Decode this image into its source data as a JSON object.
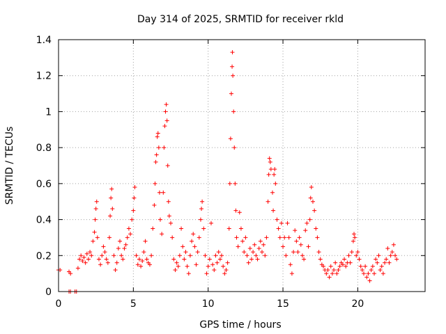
{
  "chart_data": {
    "type": "scatter",
    "title": "Day 314 of 2025, SRMTID for receiver rkld",
    "xlabel": "GPS time / hours",
    "ylabel": "SRMTID / TECUs",
    "xlim": [
      0,
      24.5
    ],
    "ylim": [
      0,
      1.4
    ],
    "xticks": [
      0,
      5,
      10,
      15,
      20
    ],
    "xtick_labels": [
      "0",
      "5",
      "10",
      "15",
      "20"
    ],
    "yticks": [
      0,
      0.2,
      0.4,
      0.6,
      0.8,
      1.0,
      1.2,
      1.4
    ],
    "ytick_labels": [
      "0",
      "0.2",
      "0.4",
      "0.6",
      "0.8",
      "1",
      "1.2",
      "1.4"
    ],
    "grid": true,
    "marker": "+",
    "color": "#ff0000",
    "series": [
      {
        "name": "SRMTID",
        "points": [
          [
            0.0,
            0.12
          ],
          [
            0.1,
            0.12
          ],
          [
            0.7,
            0.11
          ],
          [
            0.8,
            0.1
          ],
          [
            0.7,
            0.0
          ],
          [
            0.8,
            0.0
          ],
          [
            1.1,
            0.0
          ],
          [
            1.2,
            0.0
          ],
          [
            1.3,
            0.13
          ],
          [
            1.4,
            0.18
          ],
          [
            1.5,
            0.2
          ],
          [
            1.6,
            0.17
          ],
          [
            1.7,
            0.19
          ],
          [
            1.8,
            0.16
          ],
          [
            1.9,
            0.21
          ],
          [
            2.0,
            0.18
          ],
          [
            2.1,
            0.22
          ],
          [
            2.2,
            0.2
          ],
          [
            2.3,
            0.28
          ],
          [
            2.4,
            0.33
          ],
          [
            2.45,
            0.4
          ],
          [
            2.5,
            0.46
          ],
          [
            2.55,
            0.5
          ],
          [
            2.6,
            0.3
          ],
          [
            2.7,
            0.18
          ],
          [
            2.8,
            0.15
          ],
          [
            2.9,
            0.2
          ],
          [
            3.0,
            0.25
          ],
          [
            3.1,
            0.22
          ],
          [
            3.2,
            0.18
          ],
          [
            3.3,
            0.16
          ],
          [
            3.4,
            0.3
          ],
          [
            3.45,
            0.42
          ],
          [
            3.5,
            0.52
          ],
          [
            3.55,
            0.57
          ],
          [
            3.6,
            0.46
          ],
          [
            3.7,
            0.2
          ],
          [
            3.8,
            0.12
          ],
          [
            3.9,
            0.16
          ],
          [
            4.0,
            0.24
          ],
          [
            4.1,
            0.28
          ],
          [
            4.2,
            0.2
          ],
          [
            4.3,
            0.18
          ],
          [
            4.4,
            0.24
          ],
          [
            4.5,
            0.26
          ],
          [
            4.6,
            0.3
          ],
          [
            4.7,
            0.35
          ],
          [
            4.8,
            0.32
          ],
          [
            4.9,
            0.4
          ],
          [
            5.0,
            0.45
          ],
          [
            5.05,
            0.52
          ],
          [
            5.1,
            0.58
          ],
          [
            5.2,
            0.2
          ],
          [
            5.3,
            0.15
          ],
          [
            5.4,
            0.18
          ],
          [
            5.5,
            0.14
          ],
          [
            5.6,
            0.17
          ],
          [
            5.7,
            0.22
          ],
          [
            5.8,
            0.28
          ],
          [
            5.9,
            0.18
          ],
          [
            6.0,
            0.16
          ],
          [
            6.1,
            0.15
          ],
          [
            6.2,
            0.2
          ],
          [
            6.3,
            0.35
          ],
          [
            6.4,
            0.48
          ],
          [
            6.45,
            0.6
          ],
          [
            6.5,
            0.72
          ],
          [
            6.55,
            0.76
          ],
          [
            6.6,
            0.86
          ],
          [
            6.65,
            0.88
          ],
          [
            6.7,
            0.8
          ],
          [
            6.75,
            0.55
          ],
          [
            6.8,
            0.4
          ],
          [
            6.9,
            0.32
          ],
          [
            7.0,
            0.55
          ],
          [
            7.05,
            0.8
          ],
          [
            7.1,
            0.92
          ],
          [
            7.15,
            1.0
          ],
          [
            7.2,
            1.04
          ],
          [
            7.25,
            0.95
          ],
          [
            7.3,
            0.7
          ],
          [
            7.35,
            0.5
          ],
          [
            7.4,
            0.42
          ],
          [
            7.5,
            0.38
          ],
          [
            7.6,
            0.3
          ],
          [
            7.7,
            0.18
          ],
          [
            7.8,
            0.12
          ],
          [
            7.9,
            0.16
          ],
          [
            8.0,
            0.14
          ],
          [
            8.1,
            0.2
          ],
          [
            8.2,
            0.35
          ],
          [
            8.3,
            0.25
          ],
          [
            8.4,
            0.18
          ],
          [
            8.5,
            0.22
          ],
          [
            8.6,
            0.14
          ],
          [
            8.7,
            0.1
          ],
          [
            8.8,
            0.2
          ],
          [
            8.9,
            0.28
          ],
          [
            9.0,
            0.32
          ],
          [
            9.1,
            0.25
          ],
          [
            9.2,
            0.15
          ],
          [
            9.3,
            0.22
          ],
          [
            9.4,
            0.3
          ],
          [
            9.5,
            0.4
          ],
          [
            9.55,
            0.46
          ],
          [
            9.6,
            0.5
          ],
          [
            9.7,
            0.35
          ],
          [
            9.8,
            0.2
          ],
          [
            9.9,
            0.1
          ],
          [
            10.0,
            0.14
          ],
          [
            10.1,
            0.18
          ],
          [
            10.2,
            0.38
          ],
          [
            10.3,
            0.15
          ],
          [
            10.4,
            0.12
          ],
          [
            10.5,
            0.2
          ],
          [
            10.6,
            0.16
          ],
          [
            10.7,
            0.22
          ],
          [
            10.8,
            0.18
          ],
          [
            10.9,
            0.2
          ],
          [
            11.0,
            0.14
          ],
          [
            11.1,
            0.1
          ],
          [
            11.2,
            0.12
          ],
          [
            11.3,
            0.16
          ],
          [
            11.4,
            0.35
          ],
          [
            11.45,
            0.6
          ],
          [
            11.5,
            0.85
          ],
          [
            11.55,
            1.1
          ],
          [
            11.6,
            1.25
          ],
          [
            11.62,
            1.33
          ],
          [
            11.65,
            1.2
          ],
          [
            11.7,
            1.0
          ],
          [
            11.75,
            0.8
          ],
          [
            11.8,
            0.6
          ],
          [
            11.85,
            0.45
          ],
          [
            11.9,
            0.3
          ],
          [
            12.0,
            0.25
          ],
          [
            12.1,
            0.44
          ],
          [
            12.2,
            0.35
          ],
          [
            12.3,
            0.28
          ],
          [
            12.4,
            0.22
          ],
          [
            12.5,
            0.3
          ],
          [
            12.6,
            0.2
          ],
          [
            12.7,
            0.16
          ],
          [
            12.8,
            0.24
          ],
          [
            12.9,
            0.18
          ],
          [
            13.0,
            0.22
          ],
          [
            13.1,
            0.26
          ],
          [
            13.2,
            0.2
          ],
          [
            13.3,
            0.18
          ],
          [
            13.4,
            0.24
          ],
          [
            13.5,
            0.28
          ],
          [
            13.6,
            0.22
          ],
          [
            13.7,
            0.26
          ],
          [
            13.8,
            0.2
          ],
          [
            13.9,
            0.3
          ],
          [
            14.0,
            0.5
          ],
          [
            14.05,
            0.65
          ],
          [
            14.1,
            0.74
          ],
          [
            14.15,
            0.72
          ],
          [
            14.2,
            0.68
          ],
          [
            14.3,
            0.55
          ],
          [
            14.35,
            0.45
          ],
          [
            14.4,
            0.65
          ],
          [
            14.45,
            0.68
          ],
          [
            14.5,
            0.6
          ],
          [
            14.6,
            0.4
          ],
          [
            14.7,
            0.35
          ],
          [
            14.8,
            0.3
          ],
          [
            14.9,
            0.38
          ],
          [
            15.0,
            0.25
          ],
          [
            15.1,
            0.3
          ],
          [
            15.2,
            0.2
          ],
          [
            15.3,
            0.38
          ],
          [
            15.4,
            0.3
          ],
          [
            15.5,
            0.15
          ],
          [
            15.6,
            0.1
          ],
          [
            15.7,
            0.22
          ],
          [
            15.8,
            0.34
          ],
          [
            15.9,
            0.28
          ],
          [
            16.0,
            0.22
          ],
          [
            16.1,
            0.3
          ],
          [
            16.2,
            0.26
          ],
          [
            16.3,
            0.2
          ],
          [
            16.4,
            0.18
          ],
          [
            16.5,
            0.34
          ],
          [
            16.6,
            0.38
          ],
          [
            16.7,
            0.25
          ],
          [
            16.8,
            0.4
          ],
          [
            16.85,
            0.52
          ],
          [
            16.9,
            0.58
          ],
          [
            17.0,
            0.5
          ],
          [
            17.1,
            0.45
          ],
          [
            17.2,
            0.35
          ],
          [
            17.3,
            0.3
          ],
          [
            17.4,
            0.22
          ],
          [
            17.5,
            0.18
          ],
          [
            17.6,
            0.15
          ],
          [
            17.7,
            0.14
          ],
          [
            17.8,
            0.12
          ],
          [
            17.9,
            0.1
          ],
          [
            18.0,
            0.12
          ],
          [
            18.1,
            0.08
          ],
          [
            18.2,
            0.14
          ],
          [
            18.3,
            0.1
          ],
          [
            18.4,
            0.12
          ],
          [
            18.5,
            0.16
          ],
          [
            18.6,
            0.1
          ],
          [
            18.7,
            0.12
          ],
          [
            18.8,
            0.14
          ],
          [
            18.9,
            0.16
          ],
          [
            19.0,
            0.15
          ],
          [
            19.1,
            0.18
          ],
          [
            19.2,
            0.14
          ],
          [
            19.3,
            0.16
          ],
          [
            19.4,
            0.2
          ],
          [
            19.5,
            0.16
          ],
          [
            19.6,
            0.22
          ],
          [
            19.7,
            0.28
          ],
          [
            19.75,
            0.32
          ],
          [
            19.8,
            0.3
          ],
          [
            19.9,
            0.2
          ],
          [
            20.0,
            0.22
          ],
          [
            20.1,
            0.18
          ],
          [
            20.2,
            0.14
          ],
          [
            20.3,
            0.12
          ],
          [
            20.4,
            0.1
          ],
          [
            20.5,
            0.14
          ],
          [
            20.6,
            0.08
          ],
          [
            20.7,
            0.1
          ],
          [
            20.8,
            0.06
          ],
          [
            20.9,
            0.12
          ],
          [
            21.0,
            0.14
          ],
          [
            21.1,
            0.1
          ],
          [
            21.2,
            0.18
          ],
          [
            21.3,
            0.16
          ],
          [
            21.4,
            0.2
          ],
          [
            21.5,
            0.12
          ],
          [
            21.6,
            0.14
          ],
          [
            21.7,
            0.1
          ],
          [
            21.8,
            0.16
          ],
          [
            21.9,
            0.18
          ],
          [
            22.0,
            0.24
          ],
          [
            22.1,
            0.16
          ],
          [
            22.2,
            0.2
          ],
          [
            22.3,
            0.22
          ],
          [
            22.4,
            0.26
          ],
          [
            22.5,
            0.2
          ],
          [
            22.6,
            0.18
          ]
        ]
      }
    ]
  }
}
